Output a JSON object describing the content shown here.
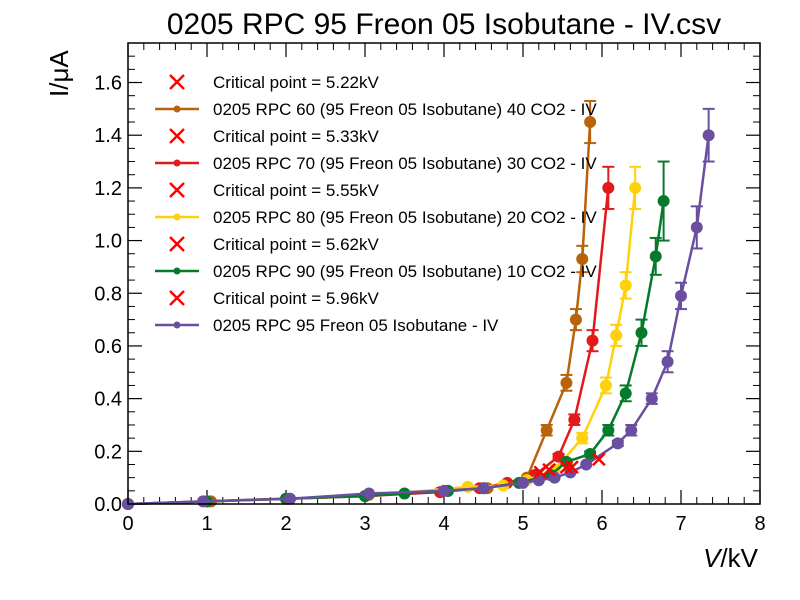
{
  "chart_data": {
    "type": "line",
    "title": "0205 RPC 95 Freon 05 Isobutane - IV.csv",
    "xlabel_var": "V",
    "xlabel_unit": "/kV",
    "ylabel": "I/μA",
    "xlim": [
      0,
      8
    ],
    "ylim": [
      0,
      1.75
    ],
    "xticks": [
      "0",
      "1",
      "2",
      "3",
      "4",
      "5",
      "6",
      "7",
      "8"
    ],
    "yticks": [
      "0.0",
      "0.2",
      "0.4",
      "0.6",
      "0.8",
      "1.0",
      "1.2",
      "1.4",
      "1.6"
    ],
    "grid": false,
    "legend_position": "top-left",
    "series": [
      {
        "name": "0205 RPC 60 (95 Freon 05 Isobutane) 40 CO2 - IV",
        "color": "#b8620a",
        "critical_label": "Critical point = 5.22kV",
        "critical_point": {
          "x": 5.22,
          "y": 0.12
        },
        "points": [
          {
            "x": 0.0,
            "y": 0.0,
            "err": 0.0
          },
          {
            "x": 1.05,
            "y": 0.01,
            "err": 0.0
          },
          {
            "x": 2.05,
            "y": 0.02,
            "err": 0.0
          },
          {
            "x": 3.05,
            "y": 0.035,
            "err": 0.0
          },
          {
            "x": 4.05,
            "y": 0.05,
            "err": 0.0
          },
          {
            "x": 4.55,
            "y": 0.06,
            "err": 0.0
          },
          {
            "x": 5.05,
            "y": 0.1,
            "err": 0.0
          },
          {
            "x": 5.3,
            "y": 0.28,
            "err": 0.02
          },
          {
            "x": 5.55,
            "y": 0.46,
            "err": 0.03
          },
          {
            "x": 5.67,
            "y": 0.7,
            "err": 0.04
          },
          {
            "x": 5.75,
            "y": 0.93,
            "err": 0.05
          },
          {
            "x": 5.85,
            "y": 1.45,
            "err": 0.08
          }
        ]
      },
      {
        "name": "0205 RPC 70 (95 Freon 05 Isobutane) 30 CO2 - IV",
        "color": "#e31a1c",
        "critical_label": "Critical point = 5.33kV",
        "critical_point": {
          "x": 5.33,
          "y": 0.13
        },
        "points": [
          {
            "x": 0.0,
            "y": 0.0,
            "err": 0.0
          },
          {
            "x": 1.0,
            "y": 0.01,
            "err": 0.0
          },
          {
            "x": 2.0,
            "y": 0.02,
            "err": 0.0
          },
          {
            "x": 3.0,
            "y": 0.03,
            "err": 0.0
          },
          {
            "x": 3.95,
            "y": 0.045,
            "err": 0.0
          },
          {
            "x": 4.45,
            "y": 0.06,
            "err": 0.0
          },
          {
            "x": 4.8,
            "y": 0.08,
            "err": 0.0
          },
          {
            "x": 5.15,
            "y": 0.11,
            "err": 0.0
          },
          {
            "x": 5.45,
            "y": 0.18,
            "err": 0.01
          },
          {
            "x": 5.65,
            "y": 0.32,
            "err": 0.02
          },
          {
            "x": 5.88,
            "y": 0.62,
            "err": 0.04
          },
          {
            "x": 6.08,
            "y": 1.2,
            "err": 0.08
          }
        ]
      },
      {
        "name": "0205 RPC 80 (95 Freon 05 Isobutane) 20 CO2 - IV",
        "color": "#ffd10a",
        "critical_label": "Critical point = 5.55kV",
        "critical_point": {
          "x": 5.55,
          "y": 0.14
        },
        "points": [
          {
            "x": 0.0,
            "y": 0.0,
            "err": 0.0
          },
          {
            "x": 1.0,
            "y": 0.01,
            "err": 0.0
          },
          {
            "x": 2.0,
            "y": 0.02,
            "err": 0.0
          },
          {
            "x": 3.0,
            "y": 0.03,
            "err": 0.0
          },
          {
            "x": 4.3,
            "y": 0.065,
            "err": 0.0
          },
          {
            "x": 4.75,
            "y": 0.07,
            "err": 0.0
          },
          {
            "x": 5.05,
            "y": 0.09,
            "err": 0.0
          },
          {
            "x": 5.4,
            "y": 0.13,
            "err": 0.0
          },
          {
            "x": 5.75,
            "y": 0.25,
            "err": 0.02
          },
          {
            "x": 6.05,
            "y": 0.45,
            "err": 0.03
          },
          {
            "x": 6.18,
            "y": 0.64,
            "err": 0.04
          },
          {
            "x": 6.3,
            "y": 0.83,
            "err": 0.05
          },
          {
            "x": 6.42,
            "y": 1.2,
            "err": 0.08
          }
        ]
      },
      {
        "name": "0205 RPC 90 (95 Freon 05 Isobutane) 10 CO2 - IV",
        "color": "#067a2b",
        "critical_label": "Critical point = 5.62kV",
        "critical_point": {
          "x": 5.62,
          "y": 0.14
        },
        "points": [
          {
            "x": 0.0,
            "y": 0.0,
            "err": 0.0
          },
          {
            "x": 1.0,
            "y": 0.01,
            "err": 0.0
          },
          {
            "x": 2.0,
            "y": 0.02,
            "err": 0.0
          },
          {
            "x": 3.0,
            "y": 0.03,
            "err": 0.0
          },
          {
            "x": 3.5,
            "y": 0.04,
            "err": 0.0
          },
          {
            "x": 4.05,
            "y": 0.05,
            "err": 0.0
          },
          {
            "x": 4.5,
            "y": 0.06,
            "err": 0.0
          },
          {
            "x": 4.95,
            "y": 0.08,
            "err": 0.0
          },
          {
            "x": 5.35,
            "y": 0.11,
            "err": 0.0
          },
          {
            "x": 5.55,
            "y": 0.16,
            "err": 0.01
          },
          {
            "x": 5.85,
            "y": 0.19,
            "err": 0.01
          },
          {
            "x": 6.08,
            "y": 0.28,
            "err": 0.02
          },
          {
            "x": 6.3,
            "y": 0.42,
            "err": 0.03
          },
          {
            "x": 6.5,
            "y": 0.65,
            "err": 0.05
          },
          {
            "x": 6.68,
            "y": 0.94,
            "err": 0.07
          },
          {
            "x": 6.78,
            "y": 1.15,
            "err": 0.15
          }
        ]
      },
      {
        "name": "0205 RPC 95 Freon 05 Isobutane - IV",
        "color": "#6a4fa0",
        "critical_label": "Critical point = 5.96kV",
        "critical_point": {
          "x": 5.96,
          "y": 0.17
        },
        "points": [
          {
            "x": 0.0,
            "y": 0.0,
            "err": 0.0
          },
          {
            "x": 0.95,
            "y": 0.01,
            "err": 0.0
          },
          {
            "x": 2.05,
            "y": 0.02,
            "err": 0.0
          },
          {
            "x": 3.05,
            "y": 0.04,
            "err": 0.0
          },
          {
            "x": 4.0,
            "y": 0.05,
            "err": 0.0
          },
          {
            "x": 4.5,
            "y": 0.06,
            "err": 0.0
          },
          {
            "x": 5.0,
            "y": 0.08,
            "err": 0.0
          },
          {
            "x": 5.2,
            "y": 0.09,
            "err": 0.0
          },
          {
            "x": 5.4,
            "y": 0.1,
            "err": 0.0
          },
          {
            "x": 5.6,
            "y": 0.12,
            "err": 0.0
          },
          {
            "x": 5.8,
            "y": 0.15,
            "err": 0.0
          },
          {
            "x": 6.2,
            "y": 0.23,
            "err": 0.01
          },
          {
            "x": 6.37,
            "y": 0.28,
            "err": 0.02
          },
          {
            "x": 6.63,
            "y": 0.4,
            "err": 0.02
          },
          {
            "x": 6.83,
            "y": 0.54,
            "err": 0.04
          },
          {
            "x": 7.0,
            "y": 0.79,
            "err": 0.05
          },
          {
            "x": 7.2,
            "y": 1.05,
            "err": 0.08
          },
          {
            "x": 7.35,
            "y": 1.4,
            "err": 0.1
          }
        ]
      }
    ]
  }
}
